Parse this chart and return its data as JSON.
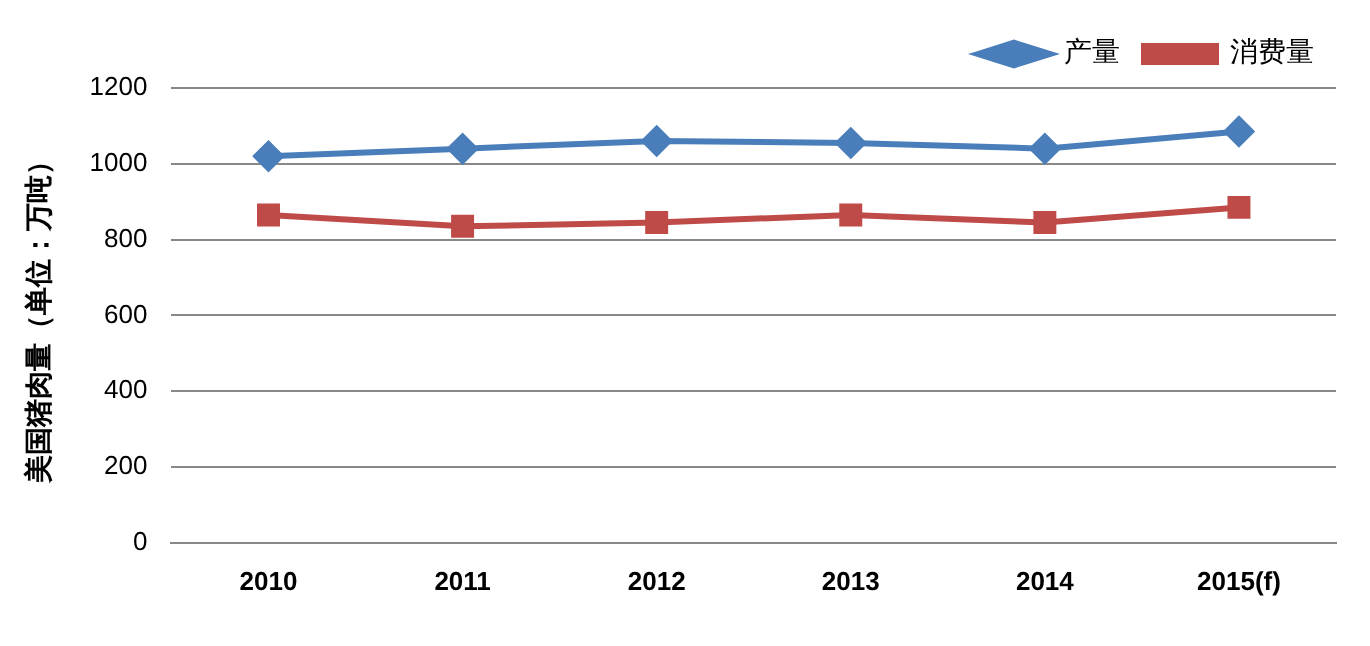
{
  "chart_data": {
    "type": "line",
    "ylabel": "美国猪肉量（单位：万吨）",
    "categories": [
      "2010",
      "2011",
      "2012",
      "2013",
      "2014",
      "2015(f)"
    ],
    "series": [
      {
        "name": "产量",
        "color": "#4a7ebb",
        "marker": "diamond",
        "values": [
          1020,
          1040,
          1060,
          1055,
          1040,
          1085
        ]
      },
      {
        "name": "消费量",
        "color": "#be4b48",
        "marker": "square",
        "values": [
          865,
          835,
          845,
          865,
          845,
          885
        ]
      }
    ],
    "ylim": [
      0,
      1200
    ],
    "yticks": [
      0,
      200,
      400,
      600,
      800,
      1000,
      1200
    ],
    "grid": "y",
    "legend": "top right",
    "line_style": "solid"
  }
}
